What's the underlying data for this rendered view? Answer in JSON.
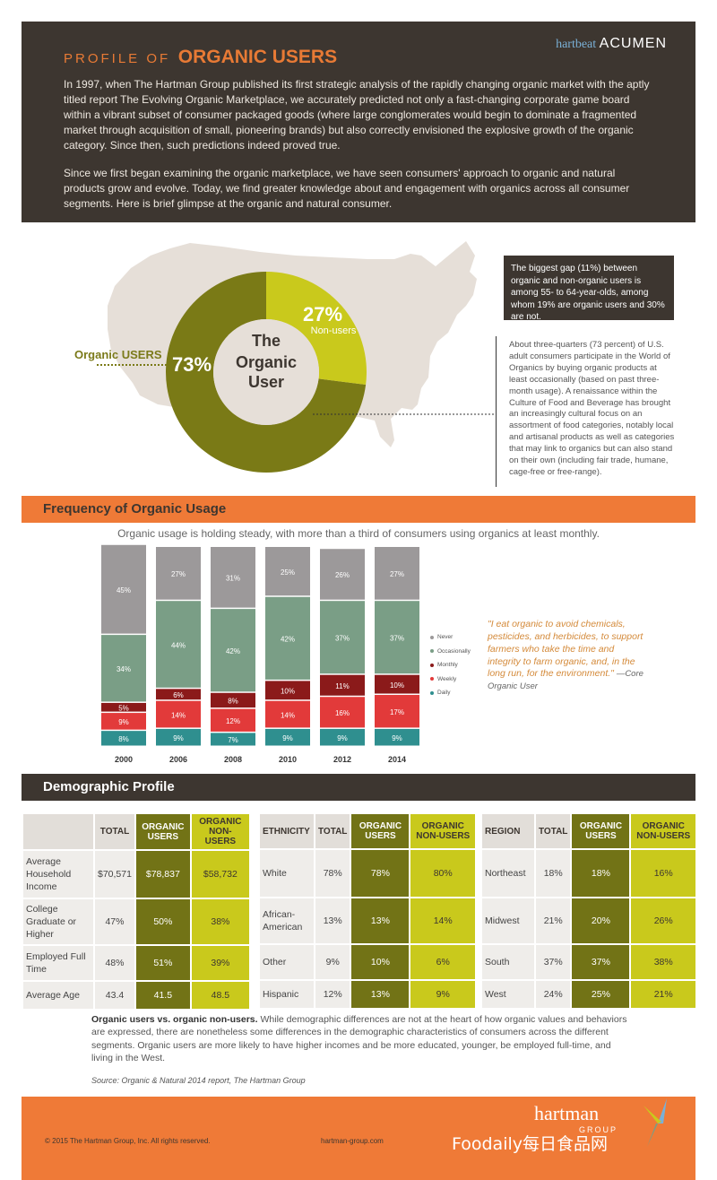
{
  "header": {
    "title_prefix": "PROFILE OF",
    "title_strong": "ORGANIC USERS",
    "brand_a": "hartbeat",
    "brand_b": "ACUMEN",
    "para1": "In 1997, when The Hartman Group published its first strategic analysis of the rapidly changing organic market with the aptly titled report The Evolving Organic Marketplace, we accurately predicted not only a fast-changing corporate game board within a vibrant subset of consumer packaged goods (where large conglomerates would begin to dominate a fragmented market through acquisition of small, pioneering brands) but also correctly envisioned the explosive growth of the organic category. Since then, such predictions indeed proved true.",
    "para2": "Since we first began examining the organic marketplace, we have seen consumers' approach to organic and natural products grow and evolve. Today, we find greater knowledge about and engagement with organics across all consumer segments. Here is brief glimpse at the organic and natural consumer."
  },
  "donut": {
    "center_line1": "The",
    "center_line2": "Organic",
    "center_line3": "User",
    "organic_pct": "73%",
    "organic_label": "Organic USERS",
    "non_pct": "27%",
    "non_label": "Non-users",
    "organic_color": "#7a7a16",
    "non_color": "#c9c91c"
  },
  "note_box": "The biggest gap (11%) between organic and non-organic users is among 55- to 64-year-olds, among whom 19% are organic users and 30% are not.",
  "side_text": "About three-quarters (73 percent) of U.S. adult consumers participate in the World of Organics by buying organic products at least occasionally (based on past three-month usage). A renaissance within the Culture of Food and Beverage has brought an increasingly cultural focus on an assortment of food categories, notably local and artisanal products as well as categories that may link to organics but can also stand on their own (including fair trade, humane, cage-free or free-range).",
  "freq": {
    "heading": "Frequency of Organic Usage",
    "subtitle": "Organic usage is holding steady, with more than a third of consumers using organics at least monthly."
  },
  "chart_data": {
    "type": "bar",
    "stacked": true,
    "categories": [
      "2000",
      "2006",
      "2008",
      "2010",
      "2012",
      "2014"
    ],
    "series": [
      {
        "name": "Daily",
        "color": "#2f8f8f",
        "values": [
          8,
          9,
          7,
          9,
          9,
          9
        ]
      },
      {
        "name": "Weekly",
        "color": "#e23a3a",
        "values": [
          9,
          14,
          12,
          14,
          16,
          17
        ]
      },
      {
        "name": "Monthly",
        "color": "#8b1a1a",
        "values": [
          5,
          6,
          8,
          10,
          11,
          10
        ]
      },
      {
        "name": "Occasionally",
        "color": "#7a9e86",
        "values": [
          34,
          44,
          42,
          42,
          37,
          37
        ]
      },
      {
        "name": "Never",
        "color": "#9c999a",
        "values": [
          45,
          27,
          31,
          25,
          26,
          27
        ]
      }
    ],
    "legend_order": [
      "Never",
      "Occasionally",
      "Monthly",
      "Weekly",
      "Daily"
    ],
    "legend_position": "right"
  },
  "quote": {
    "text": "\"I eat organic to avoid chemicals, pesticides, and herbicides, to support farmers who take the time and integrity to farm organic, and, in the long run, for the environment.\"",
    "attribution": "—Core Organic User"
  },
  "demo": {
    "heading": "Demographic Profile",
    "col_total": "TOTAL",
    "col_org": "ORGANIC USERS",
    "col_non": "ORGANIC NON-USERS",
    "table1": {
      "label_header": "",
      "rows": [
        {
          "label": "Average Household Income",
          "total": "$70,571",
          "org": "$78,837",
          "non": "$58,732"
        },
        {
          "label": "College Graduate or Higher",
          "total": "47%",
          "org": "50%",
          "non": "38%"
        },
        {
          "label": "Employed Full Time",
          "total": "48%",
          "org": "51%",
          "non": "39%"
        },
        {
          "label": "Average Age",
          "total": "43.4",
          "org": "41.5",
          "non": "48.5"
        }
      ]
    },
    "table2": {
      "label_header": "ETHNICITY",
      "rows": [
        {
          "label": "White",
          "total": "78%",
          "org": "78%",
          "non": "80%"
        },
        {
          "label": "African-American",
          "total": "13%",
          "org": "13%",
          "non": "14%"
        },
        {
          "label": "Other",
          "total": "9%",
          "org": "10%",
          "non": "6%"
        },
        {
          "label": "Hispanic",
          "total": "12%",
          "org": "13%",
          "non": "9%"
        }
      ]
    },
    "table3": {
      "label_header": "REGION",
      "rows": [
        {
          "label": "Northeast",
          "total": "18%",
          "org": "18%",
          "non": "16%"
        },
        {
          "label": "Midwest",
          "total": "21%",
          "org": "20%",
          "non": "26%"
        },
        {
          "label": "South",
          "total": "37%",
          "org": "37%",
          "non": "38%"
        },
        {
          "label": "West",
          "total": "24%",
          "org": "25%",
          "non": "21%"
        }
      ]
    },
    "note_bold": "Organic users vs. organic non-users.",
    "note_text": " While demographic differences are not at the heart of how organic values and behaviors are expressed, there are nonetheless some differences in the demographic characteristics of consumers across the different segments. Organic users are more likely to have higher incomes and be more educated, younger, be employed full-time, and living in the West.",
    "source": "Source: Organic & Natural 2014 report, The Hartman Group"
  },
  "footer": {
    "copyright": "© 2015 The Hartman Group, Inc. All rights reserved.",
    "url": "hartman-group.com",
    "logo": "hartman",
    "logo_sub": "GROUP",
    "watermark": "Foodaily每日食品网"
  }
}
